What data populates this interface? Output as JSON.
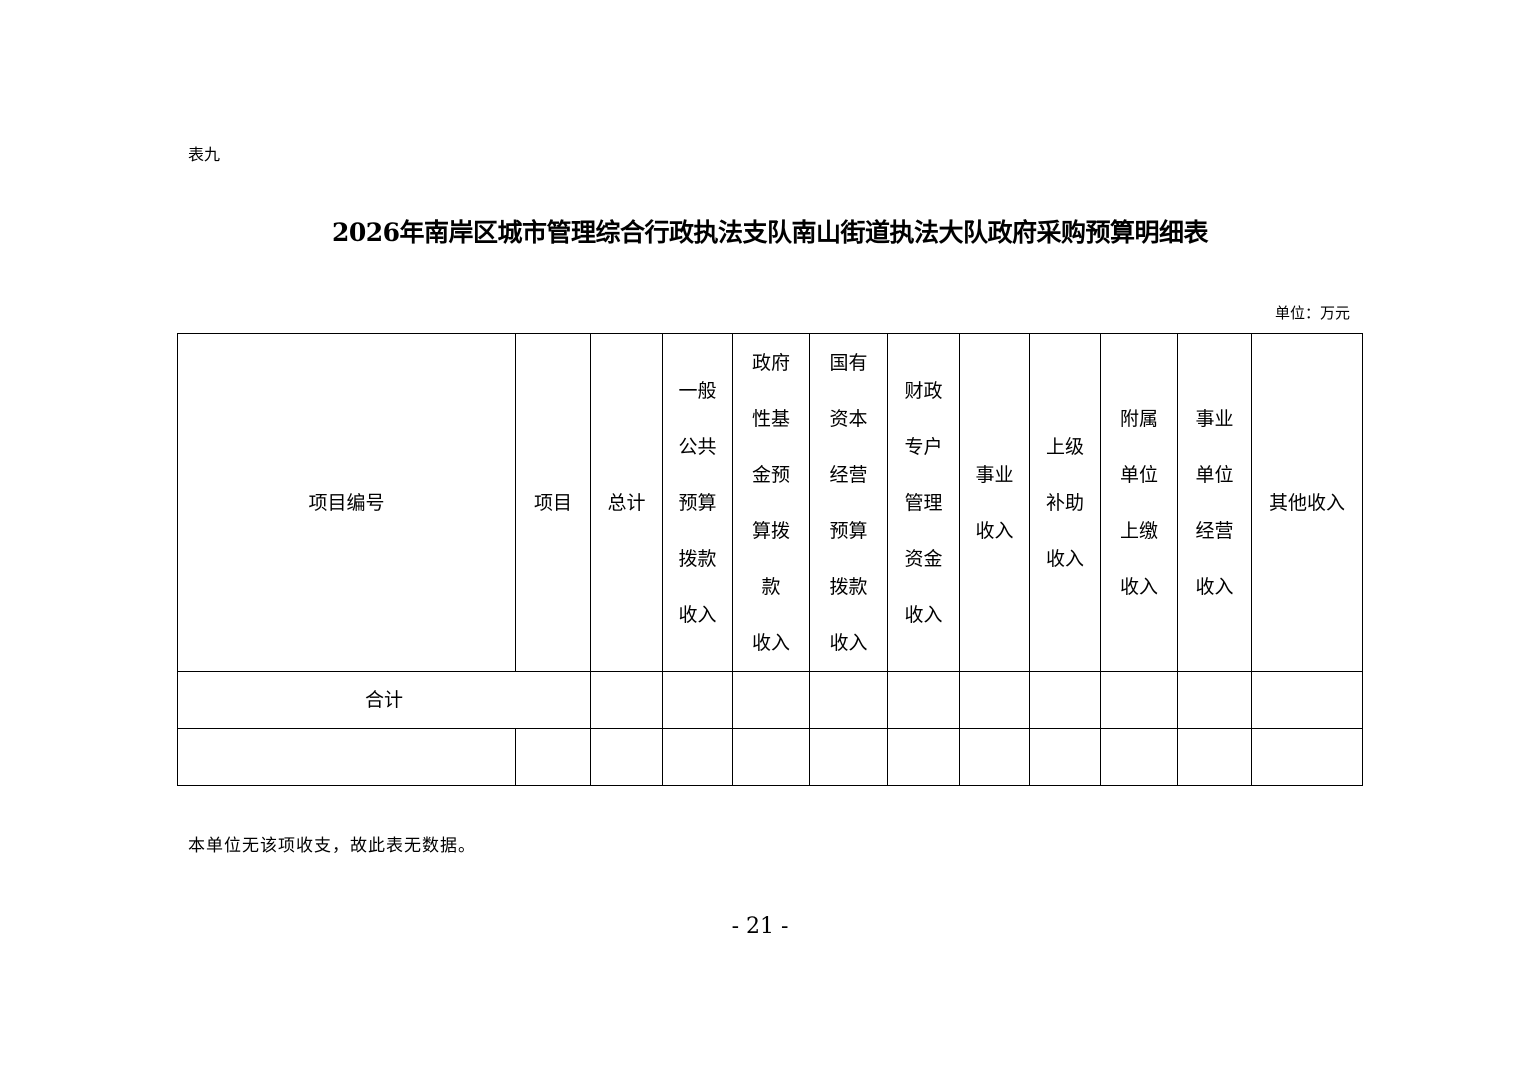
{
  "label": "表九",
  "title": "2026年南岸区城市管理综合行政执法支队南山街道执法大队政府采购预算明细表",
  "unit": "单位：万元",
  "table": {
    "headers": [
      "项目编号",
      "项目",
      "总计",
      "一般\n公共\n预算\n拨款\n收入",
      "政府\n性基\n金预\n算拨\n款\n收入",
      "国有\n资本\n经营\n预算\n拨款\n收入",
      "财政\n专户\n管理\n资金\n收入",
      "事业\n收入",
      "上级\n补助\n收入",
      "附属\n单位\n上缴\n收入",
      "事业\n单位\n经营\n收入",
      "其他收入"
    ],
    "total_label": "合计"
  },
  "note": "本单位无该项收支，故此表无数据。",
  "page_number": "- 21 -"
}
